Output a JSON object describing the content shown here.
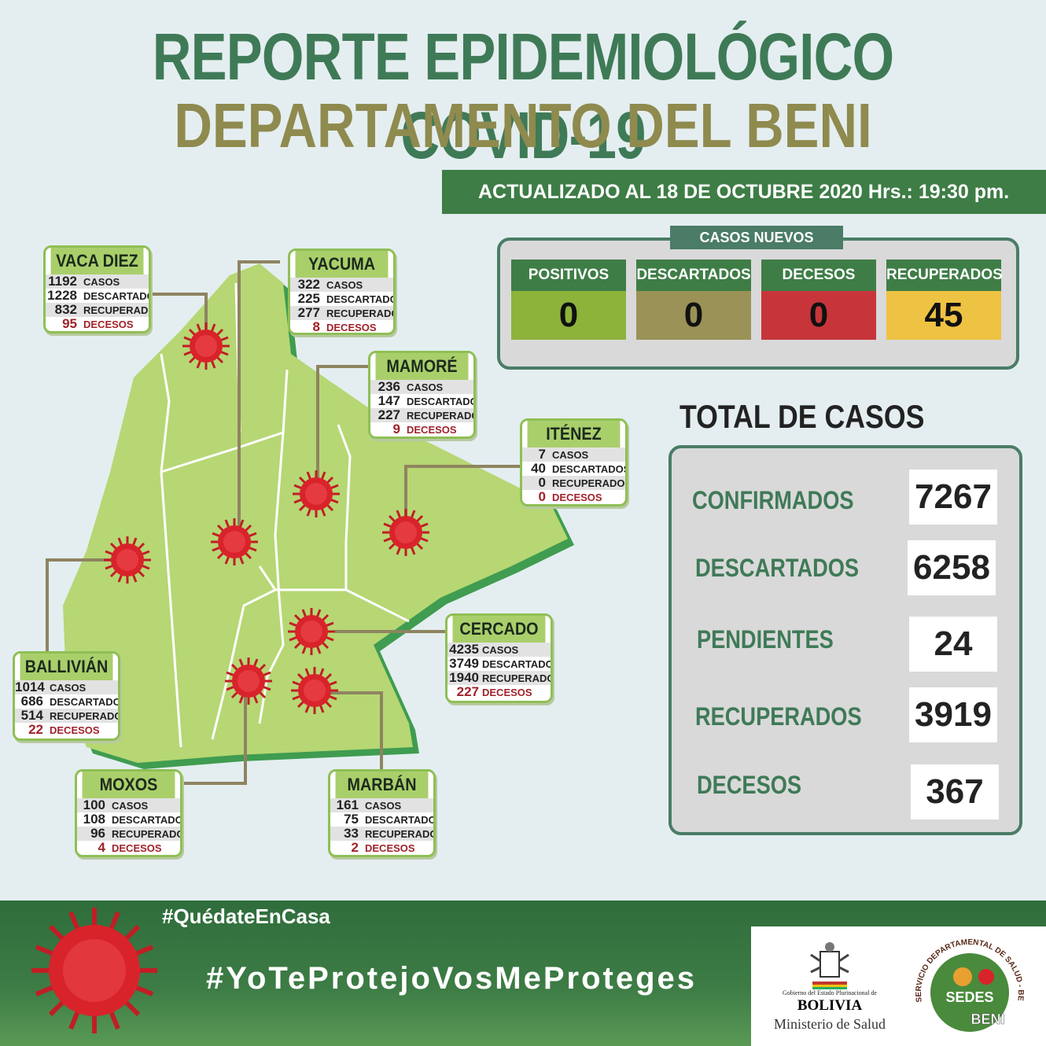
{
  "header": {
    "title": "REPORTE EPIDEMIOLÓGICO COVID-19",
    "subtitle": "DEPARTAMENTO DEL BENI",
    "updated": "ACTUALIZADO AL 18 DE OCTUBRE 2020 Hrs.: 19:30 pm."
  },
  "nuevos": {
    "title": "CASOS NUEVOS",
    "items": [
      {
        "label": "POSITIVOS",
        "value": "0",
        "color": "#8db33a"
      },
      {
        "label": "DESCARTADOS",
        "value": "0",
        "color": "#9a9256"
      },
      {
        "label": "DECESOS",
        "value": "0",
        "color": "#c7353a"
      },
      {
        "label": "RECUPERADOS",
        "value": "45",
        "color": "#eec243"
      }
    ]
  },
  "totales": {
    "title": "TOTAL DE CASOS",
    "items": [
      {
        "label": "CONFIRMADOS",
        "value": "7267"
      },
      {
        "label": "DESCARTADOS",
        "value": "6258"
      },
      {
        "label": "PENDIENTES",
        "value": "24"
      },
      {
        "label": "RECUPERADOS",
        "value": "3919"
      },
      {
        "label": "DECESOS",
        "value": "367"
      }
    ]
  },
  "labels": {
    "casos": "CASOS",
    "descartados": "DESCARTADOS",
    "recuperados": "RECUPERADOS",
    "decesos": "DECESOS"
  },
  "districts": {
    "vaca_diez": {
      "name": "VACA DIEZ",
      "casos": "1192",
      "descartados": "1228",
      "recuperados": "832",
      "decesos": "95"
    },
    "yacuma": {
      "name": "YACUMA",
      "casos": "322",
      "descartados": "225",
      "recuperados": "277",
      "decesos": "8"
    },
    "mamore": {
      "name": "MAMORÉ",
      "casos": "236",
      "descartados": "147",
      "recuperados": "227",
      "decesos": "9"
    },
    "itenez": {
      "name": "ITÉNEZ",
      "casos": "7",
      "descartados": "40",
      "recuperados": "0",
      "decesos": "0"
    },
    "ballivian": {
      "name": "BALLIVIÁN",
      "casos": "1014",
      "descartados": "686",
      "recuperados": "514",
      "decesos": "22"
    },
    "cercado": {
      "name": "CERCADO",
      "casos": "4235",
      "descartados": "3749",
      "recuperados": "1940",
      "decesos": "227"
    },
    "moxos": {
      "name": "MOXOS",
      "casos": "100",
      "descartados": "108",
      "recuperados": "96",
      "decesos": "4"
    },
    "marban": {
      "name": "MARBÁN",
      "casos": "161",
      "descartados": "75",
      "recuperados": "33",
      "decesos": "2"
    }
  },
  "footer": {
    "hashtag1": "#QuédateEnCasa",
    "hashtag2": "#YoTeProtejoVosMeProteges",
    "gob_line": "Gobierno del Estado Plurinacional de",
    "gob_country": "BOLIVIA",
    "gob_ministry": "Ministerio de Salud",
    "sedes_arc": "SERVICIO DEPARTAMENTAL DE SALUD - BENI",
    "sedes_name": "SEDES",
    "sedes_place": "BENI"
  }
}
